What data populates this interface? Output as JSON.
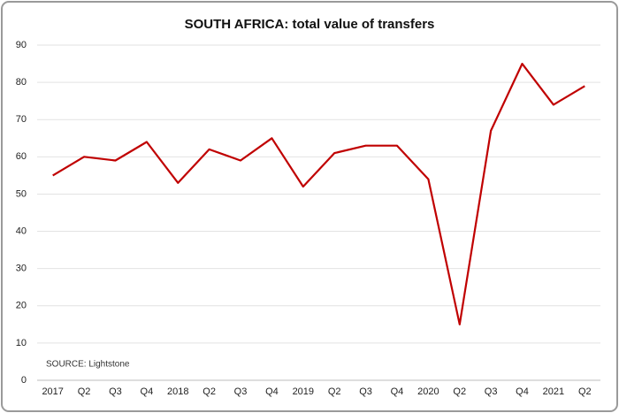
{
  "chart_data": {
    "type": "line",
    "title": "SOUTH AFRICA: total value of transfers",
    "annotation": "SOURCE: Lightstone",
    "categories": [
      "2017",
      "Q2",
      "Q3",
      "Q4",
      "2018",
      "Q2",
      "Q3",
      "Q4",
      "2019",
      "Q2",
      "Q3",
      "Q4",
      "2020",
      "Q2",
      "Q3",
      "Q4",
      "2021",
      "Q2"
    ],
    "values": [
      55,
      60,
      59,
      64,
      53,
      62,
      59,
      65,
      52,
      61,
      63,
      63,
      54,
      15,
      67,
      85,
      74,
      79
    ],
    "color": "#c00000",
    "ylim": [
      0,
      90
    ],
    "yticks": [
      0,
      10,
      20,
      30,
      40,
      50,
      60,
      70,
      80,
      90
    ],
    "grid": true
  }
}
